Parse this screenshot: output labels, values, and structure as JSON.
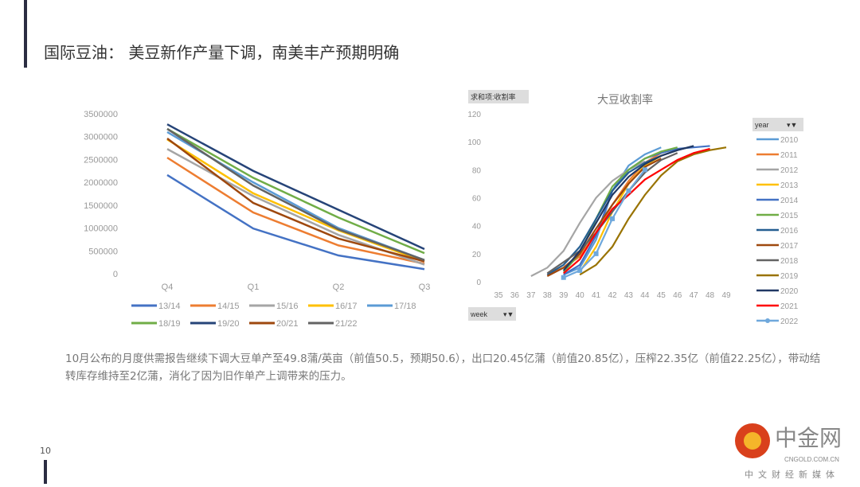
{
  "page": {
    "title": "国际豆油： 美豆新作产量下调，南美丰产预期明确",
    "number": "10",
    "description": "10月公布的月度供需报告继续下调大豆单产至49.8蒲/英亩（前值50.5，预期50.6），出口20.45亿蒲（前值20.85亿），压榨22.35亿（前值22.25亿），带动结转库存维持至2亿蒲，消化了因为旧作单产上调带来的压力。"
  },
  "logo": {
    "text": "中金网",
    "sub": "CNGOLD.COM.CN",
    "tagline": "中文财经新媒体"
  },
  "chart_data": [
    {
      "type": "line",
      "categories": [
        "Q4",
        "Q1",
        "Q2",
        "Q3"
      ],
      "ylim": [
        0,
        3500000
      ],
      "yticks": [
        "0",
        "500000",
        "1000000",
        "1500000",
        "2000000",
        "2500000",
        "3000000",
        "3500000"
      ],
      "legend": "bottom",
      "series": [
        {
          "name": "13/14",
          "color": "#4472c4",
          "values": [
            2160000,
            990000,
            400000,
            100000
          ]
        },
        {
          "name": "14/15",
          "color": "#ed7d31",
          "values": [
            2540000,
            1340000,
            620000,
            220000
          ]
        },
        {
          "name": "15/16",
          "color": "#a5a5a5",
          "values": [
            2730000,
            1700000,
            850000,
            200000
          ]
        },
        {
          "name": "16/17",
          "color": "#ffc000",
          "values": [
            2940000,
            1760000,
            950000,
            270000
          ]
        },
        {
          "name": "17/18",
          "color": "#5b9bd5",
          "values": [
            3100000,
            2000000,
            1000000,
            300000
          ]
        },
        {
          "name": "18/19",
          "color": "#70ad47",
          "values": [
            3170000,
            2100000,
            1230000,
            450000
          ]
        },
        {
          "name": "19/20",
          "color": "#264478",
          "values": [
            3270000,
            2250000,
            1400000,
            540000
          ]
        },
        {
          "name": "20/21",
          "color": "#9e480e",
          "values": [
            2960000,
            1550000,
            770000,
            270000
          ]
        },
        {
          "name": "21/22",
          "color": "#636363",
          "values": [
            3170000,
            1930000,
            970000,
            300000
          ]
        }
      ]
    },
    {
      "type": "line",
      "title": "大豆收割率",
      "field_button": "求和项:收割率",
      "axis_button": "week",
      "legend_title": "year",
      "xlim": [
        35,
        49
      ],
      "ylim": [
        0,
        120
      ],
      "yticks": [
        "0",
        "20",
        "40",
        "60",
        "80",
        "100",
        "120"
      ],
      "xticks": [
        "35",
        "36",
        "37",
        "38",
        "39",
        "40",
        "41",
        "42",
        "43",
        "44",
        "45",
        "46",
        "47",
        "48",
        "49"
      ],
      "legend": "right",
      "series": [
        {
          "name": "2010",
          "color": "#5b9bd5",
          "x": [
            39,
            40,
            41,
            42,
            43,
            44,
            45
          ],
          "values": [
            5,
            10,
            30,
            65,
            83,
            91,
            96
          ]
        },
        {
          "name": "2011",
          "color": "#ed7d31",
          "x": [
            38,
            39,
            40,
            41,
            42,
            43,
            44,
            45
          ],
          "values": [
            5,
            10,
            18,
            35,
            55,
            72,
            85,
            92
          ]
        },
        {
          "name": "2012",
          "color": "#a5a5a5",
          "x": [
            37,
            38,
            39,
            40,
            41,
            42,
            43,
            44
          ],
          "values": [
            4,
            10,
            22,
            42,
            60,
            72,
            80,
            86
          ]
        },
        {
          "name": "2013",
          "color": "#ffc000",
          "x": [
            40,
            41,
            42,
            43,
            44,
            45,
            46
          ],
          "values": [
            7,
            25,
            50,
            70,
            83,
            90,
            94
          ]
        },
        {
          "name": "2014",
          "color": "#4472c4",
          "x": [
            39,
            40,
            41,
            42,
            43,
            44,
            45,
            46,
            47,
            48
          ],
          "values": [
            5,
            12,
            33,
            65,
            80,
            88,
            92,
            95,
            96,
            97
          ]
        },
        {
          "name": "2015",
          "color": "#70ad47",
          "x": [
            39,
            40,
            41,
            42,
            43,
            44,
            45,
            46
          ],
          "values": [
            7,
            20,
            45,
            68,
            80,
            88,
            93,
            96
          ]
        },
        {
          "name": "2016",
          "color": "#255e91",
          "x": [
            38,
            39,
            40,
            41,
            42,
            43,
            44,
            45,
            46,
            47
          ],
          "values": [
            5,
            12,
            25,
            45,
            65,
            78,
            85,
            90,
            94,
            97
          ]
        },
        {
          "name": "2017",
          "color": "#9e480e",
          "x": [
            38,
            39,
            40,
            41,
            42,
            43,
            44,
            45
          ],
          "values": [
            4,
            10,
            20,
            38,
            55,
            70,
            82,
            88
          ]
        },
        {
          "name": "2018",
          "color": "#636363",
          "x": [
            38,
            39,
            40,
            41,
            42,
            43,
            44,
            45,
            46
          ],
          "values": [
            6,
            14,
            22,
            35,
            50,
            65,
            78,
            87,
            92
          ]
        },
        {
          "name": "2019",
          "color": "#997300",
          "x": [
            40,
            41,
            42,
            43,
            44,
            45,
            46,
            47,
            48,
            49
          ],
          "values": [
            5,
            12,
            25,
            45,
            62,
            76,
            86,
            91,
            94,
            96
          ]
        },
        {
          "name": "2020",
          "color": "#203864",
          "x": [
            39,
            40,
            41,
            42,
            43,
            44,
            45,
            46,
            47
          ],
          "values": [
            8,
            22,
            42,
            62,
            75,
            84,
            90,
            94,
            97
          ]
        },
        {
          "name": "2021",
          "color": "#ff0000",
          "x": [
            39,
            40,
            41,
            42,
            43,
            44,
            45,
            46,
            47,
            48
          ],
          "values": [
            6,
            16,
            35,
            52,
            62,
            73,
            80,
            87,
            92,
            95
          ]
        },
        {
          "name": "2022",
          "color": "#6fa8dc",
          "marker": true,
          "x": [
            39,
            40,
            41,
            42,
            43,
            44
          ],
          "values": [
            3,
            8,
            20,
            45,
            65,
            80
          ]
        }
      ]
    }
  ]
}
